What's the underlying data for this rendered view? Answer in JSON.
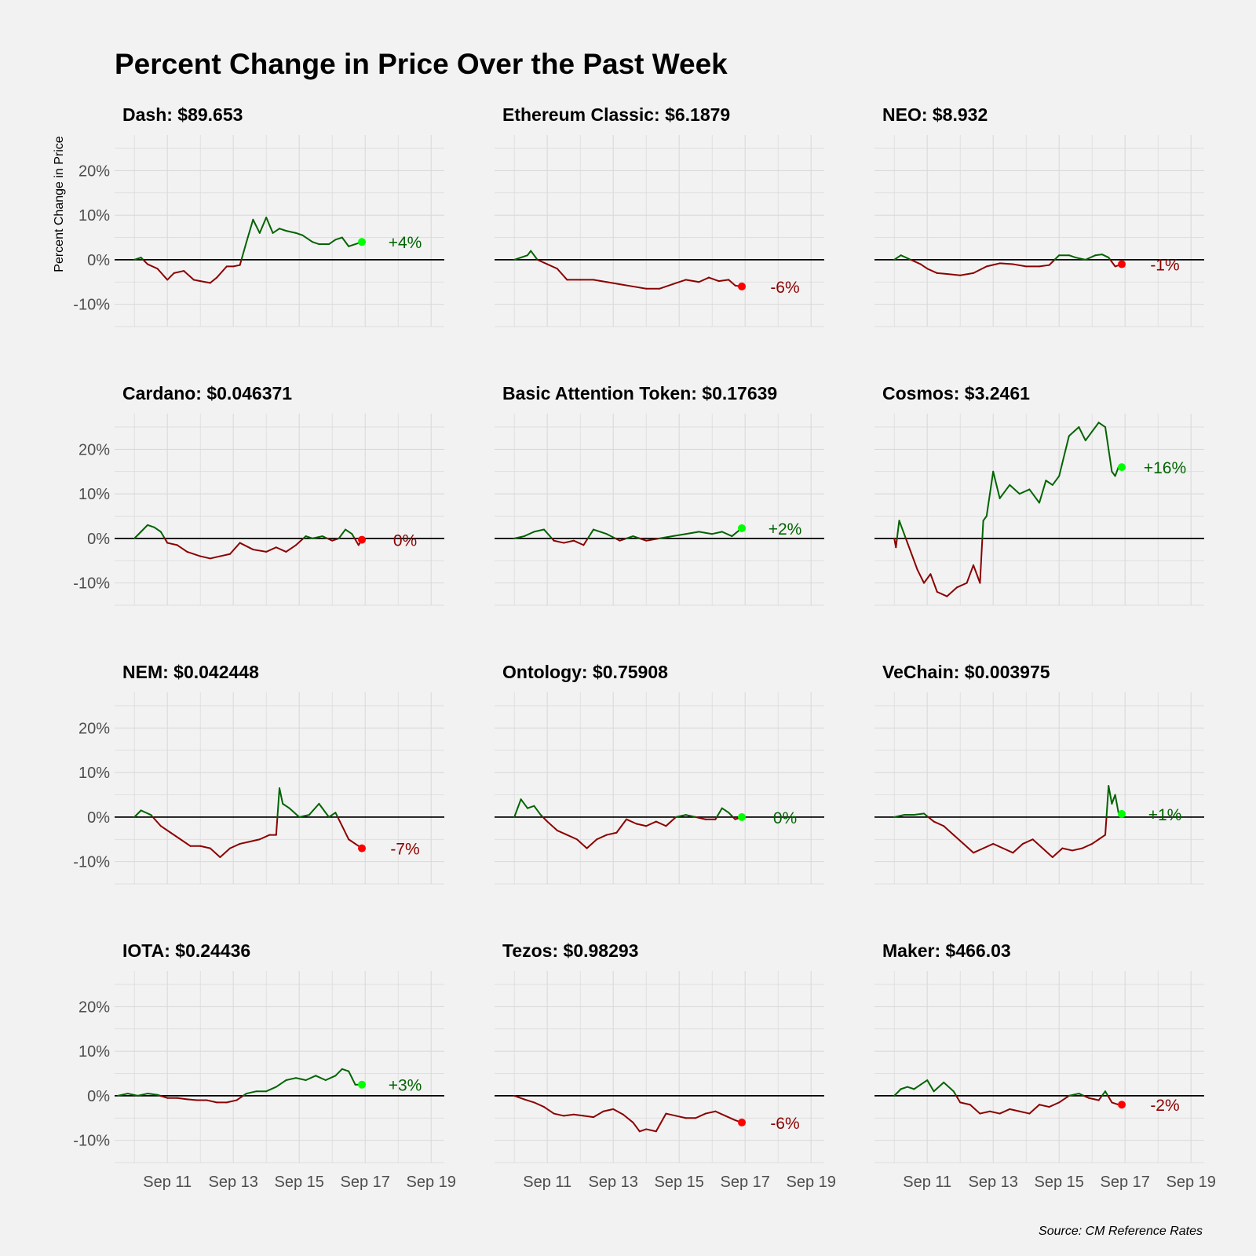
{
  "chart_data": {
    "title": "Percent Change in Price Over the Past Week",
    "ylabel": "Percent Change in Price",
    "caption": "Source: CM Reference Rates",
    "type": "line",
    "x_ticks": [
      "Sep 11",
      "Sep 13",
      "Sep 15",
      "Sep 17",
      "Sep 19"
    ],
    "x_tick_days": [
      11,
      13,
      15,
      17,
      19
    ],
    "xlim": [
      9.4,
      19.4
    ],
    "y_ticks": [
      "20%",
      "10%",
      "0%",
      "-10%"
    ],
    "y_tick_values": [
      20,
      10,
      0,
      -10
    ],
    "ylim": [
      -15,
      28
    ],
    "colors": {
      "up_line": "#006400",
      "down_line": "#8b0000",
      "up_point": "#00ff00",
      "down_point": "#ff0000",
      "zero_line": "#000000",
      "grid": "#d9d9d9"
    },
    "panels": [
      {
        "name": "Dash",
        "title": "Dash: $89.653",
        "label": "+4%",
        "final_change": 4,
        "days": [
          10,
          10.2,
          10.4,
          10.7,
          11,
          11.2,
          11.5,
          11.8,
          12,
          12.3,
          12.5,
          12.8,
          13,
          13.2,
          13.4,
          13.6,
          13.8,
          14,
          14.2,
          14.4,
          14.6,
          14.9,
          15.1,
          15.4,
          15.6,
          15.9,
          16.1,
          16.3,
          16.5,
          16.7,
          16.9
        ],
        "values": [
          0,
          0.5,
          -1,
          -2,
          -4.5,
          -3,
          -2.5,
          -4.5,
          -4.8,
          -5.2,
          -4,
          -1.5,
          -1.5,
          -1.2,
          4,
          9,
          6,
          9.5,
          6,
          7,
          6.5,
          6,
          5.5,
          4,
          3.5,
          3.5,
          4.5,
          5,
          3,
          3.5,
          4
        ]
      },
      {
        "name": "Ethereum Classic",
        "title": "Ethereum Classic: $6.1879",
        "label": "-6%",
        "final_change": -6,
        "days": [
          10,
          10.2,
          10.4,
          10.5,
          10.7,
          11,
          11.3,
          11.6,
          12,
          12.4,
          12.8,
          13.2,
          13.6,
          14,
          14.4,
          14.8,
          15.2,
          15.6,
          15.9,
          16.2,
          16.5,
          16.7,
          16.9
        ],
        "values": [
          0,
          0.5,
          1,
          2,
          0,
          -1,
          -2,
          -4.5,
          -4.5,
          -4.5,
          -5,
          -5.5,
          -6,
          -6.5,
          -6.5,
          -5.5,
          -4.5,
          -5,
          -4,
          -4.8,
          -4.5,
          -5.8,
          -6
        ]
      },
      {
        "name": "NEO",
        "title": "NEO: $8.932",
        "label": "-1%",
        "final_change": -1,
        "days": [
          10,
          10.2,
          10.5,
          10.8,
          11,
          11.3,
          11.6,
          12,
          12.4,
          12.8,
          13.2,
          13.6,
          14,
          14.4,
          14.7,
          15,
          15.3,
          15.5,
          15.8,
          16.1,
          16.3,
          16.5,
          16.7,
          16.9
        ],
        "values": [
          0,
          1,
          0,
          -1,
          -2,
          -3,
          -3.2,
          -3.5,
          -3,
          -1.5,
          -0.8,
          -1,
          -1.5,
          -1.5,
          -1.2,
          1,
          1,
          0.5,
          0,
          1,
          1.2,
          0.5,
          -1.5,
          -1
        ]
      },
      {
        "name": "Cardano",
        "title": "Cardano: $0.046371",
        "label": "0%",
        "final_change": -0.3,
        "days": [
          10,
          10.2,
          10.4,
          10.6,
          10.8,
          11,
          11.3,
          11.6,
          12,
          12.3,
          12.6,
          12.9,
          13.2,
          13.6,
          14,
          14.3,
          14.6,
          14.9,
          15.2,
          15.4,
          15.7,
          16,
          16.2,
          16.4,
          16.6,
          16.8,
          16.9
        ],
        "values": [
          0,
          1.5,
          3,
          2.5,
          1.5,
          -1,
          -1.5,
          -3,
          -4,
          -4.5,
          -4,
          -3.5,
          -1,
          -2.5,
          -3,
          -2,
          -3,
          -1.5,
          0.5,
          0,
          0.5,
          -0.5,
          0,
          2,
          1,
          -1.5,
          -0.3
        ]
      },
      {
        "name": "Basic Attention Token",
        "title": "Basic Attention Token: $0.17639",
        "label": "+2%",
        "final_change": 2.3,
        "days": [
          10,
          10.3,
          10.6,
          10.9,
          11.2,
          11.5,
          11.8,
          12.1,
          12.4,
          12.8,
          13.2,
          13.6,
          14,
          14.4,
          14.8,
          15.2,
          15.6,
          16,
          16.3,
          16.6,
          16.9
        ],
        "values": [
          0,
          0.5,
          1.5,
          2,
          -0.5,
          -1,
          -0.5,
          -1.5,
          2,
          1,
          -0.5,
          0.5,
          -0.5,
          0,
          0.5,
          1,
          1.5,
          1,
          1.5,
          0.5,
          2.3
        ]
      },
      {
        "name": "Cosmos",
        "title": "Cosmos: $3.2461",
        "label": "+16%",
        "final_change": 16,
        "days": [
          10,
          10.05,
          10.15,
          10.3,
          10.5,
          10.7,
          10.9,
          11.1,
          11.3,
          11.6,
          11.9,
          12.2,
          12.4,
          12.6,
          12.7,
          12.8,
          12.9,
          13.0,
          13.2,
          13.5,
          13.8,
          14.1,
          14.4,
          14.6,
          14.8,
          15.0,
          15.3,
          15.6,
          15.8,
          16.0,
          16.2,
          16.4,
          16.5,
          16.6,
          16.7,
          16.8,
          16.9
        ],
        "values": [
          0,
          -2,
          4,
          1,
          -3,
          -7,
          -10,
          -8,
          -12,
          -13,
          -11,
          -10,
          -6,
          -10,
          4,
          5,
          10,
          15,
          9,
          12,
          10,
          11,
          8,
          13,
          12,
          14,
          23,
          25,
          22,
          24,
          26,
          25,
          20,
          15,
          14,
          16,
          16
        ]
      },
      {
        "name": "NEM",
        "title": "NEM: $0.042448",
        "label": "-7%",
        "final_change": -7,
        "days": [
          10,
          10.2,
          10.5,
          10.8,
          11.1,
          11.4,
          11.7,
          12,
          12.3,
          12.6,
          12.9,
          13.2,
          13.5,
          13.8,
          14.1,
          14.3,
          14.4,
          14.5,
          14.7,
          15,
          15.3,
          15.6,
          15.9,
          16.1,
          16.3,
          16.5,
          16.7,
          16.9
        ],
        "values": [
          0,
          1.5,
          0.5,
          -2,
          -3.5,
          -5,
          -6.5,
          -6.5,
          -7,
          -9,
          -7,
          -6,
          -5.5,
          -5,
          -4,
          -4,
          6.5,
          3,
          2,
          0,
          0.5,
          3,
          0,
          1,
          -2,
          -5,
          -6,
          -7
        ]
      },
      {
        "name": "Ontology",
        "title": "Ontology: $0.75908",
        "label": "0%",
        "final_change": 0,
        "days": [
          10,
          10.2,
          10.4,
          10.6,
          10.8,
          11,
          11.3,
          11.6,
          11.9,
          12.2,
          12.5,
          12.8,
          13.1,
          13.4,
          13.7,
          14,
          14.3,
          14.6,
          14.9,
          15.2,
          15.5,
          15.8,
          16.1,
          16.3,
          16.5,
          16.7,
          16.9
        ],
        "values": [
          0,
          4,
          2,
          2.5,
          0.5,
          -1,
          -3,
          -4,
          -5,
          -7,
          -5,
          -4,
          -3.5,
          -0.5,
          -1.5,
          -2,
          -1,
          -2,
          0,
          0.5,
          0,
          -0.5,
          -0.5,
          2,
          1,
          -0.5,
          0
        ]
      },
      {
        "name": "VeChain",
        "title": "VeChain: $0.003975",
        "label": "+1%",
        "final_change": 0.7,
        "days": [
          10,
          10.3,
          10.6,
          10.9,
          11.2,
          11.5,
          11.8,
          12.1,
          12.4,
          12.7,
          13,
          13.3,
          13.6,
          13.9,
          14.2,
          14.5,
          14.8,
          15.1,
          15.4,
          15.7,
          16,
          16.2,
          16.4,
          16.5,
          16.6,
          16.7,
          16.8,
          16.9
        ],
        "values": [
          0,
          0.5,
          0.5,
          0.8,
          -1,
          -2,
          -4,
          -6,
          -8,
          -7,
          -6,
          -7,
          -8,
          -6,
          -5,
          -7,
          -9,
          -7,
          -7.5,
          -7,
          -6,
          -5,
          -4,
          7,
          3,
          5,
          1,
          0.7
        ]
      },
      {
        "name": "IOTA",
        "title": "IOTA: $0.24436",
        "label": "+3%",
        "final_change": 2.5,
        "days": [
          9.5,
          9.8,
          10.1,
          10.4,
          10.7,
          11,
          11.3,
          11.6,
          11.9,
          12.2,
          12.5,
          12.8,
          13.1,
          13.4,
          13.7,
          14,
          14.3,
          14.6,
          14.9,
          15.2,
          15.5,
          15.8,
          16.1,
          16.3,
          16.5,
          16.6,
          16.7,
          16.9
        ],
        "values": [
          0,
          0.5,
          0,
          0.5,
          0.2,
          -0.5,
          -0.5,
          -0.8,
          -1,
          -1,
          -1.5,
          -1.5,
          -1,
          0.5,
          1,
          1,
          2,
          3.5,
          4,
          3.5,
          4.5,
          3.5,
          4.5,
          6,
          5.5,
          4,
          2.5,
          2.5
        ]
      },
      {
        "name": "Tezos",
        "title": "Tezos: $0.98293",
        "label": "-6%",
        "final_change": -6,
        "days": [
          10,
          10.3,
          10.6,
          10.9,
          11.2,
          11.5,
          11.8,
          12.1,
          12.4,
          12.7,
          13,
          13.3,
          13.6,
          13.8,
          14,
          14.3,
          14.6,
          14.9,
          15.2,
          15.5,
          15.8,
          16.1,
          16.4,
          16.7,
          16.9
        ],
        "values": [
          0,
          -0.8,
          -1.5,
          -2.5,
          -4,
          -4.5,
          -4.2,
          -4.5,
          -4.8,
          -3.5,
          -3,
          -4.2,
          -6,
          -8,
          -7.5,
          -8,
          -4,
          -4.5,
          -5,
          -5,
          -4,
          -3.5,
          -4.5,
          -5.5,
          -6
        ]
      },
      {
        "name": "Maker",
        "title": "Maker: $466.03",
        "label": "-2%",
        "final_change": -2,
        "days": [
          10,
          10.2,
          10.4,
          10.6,
          10.8,
          11,
          11.2,
          11.5,
          11.8,
          12,
          12.3,
          12.6,
          12.9,
          13.2,
          13.5,
          13.8,
          14.1,
          14.4,
          14.7,
          15,
          15.3,
          15.6,
          15.9,
          16.2,
          16.4,
          16.6,
          16.8,
          16.9
        ],
        "values": [
          0,
          1.5,
          2,
          1.5,
          2.5,
          3.5,
          1,
          3,
          1,
          -1.5,
          -2,
          -4,
          -3.5,
          -4,
          -3,
          -3.5,
          -4,
          -2,
          -2.5,
          -1.5,
          0,
          0.5,
          -0.5,
          -1,
          1,
          -1.5,
          -2,
          -2
        ]
      }
    ]
  }
}
